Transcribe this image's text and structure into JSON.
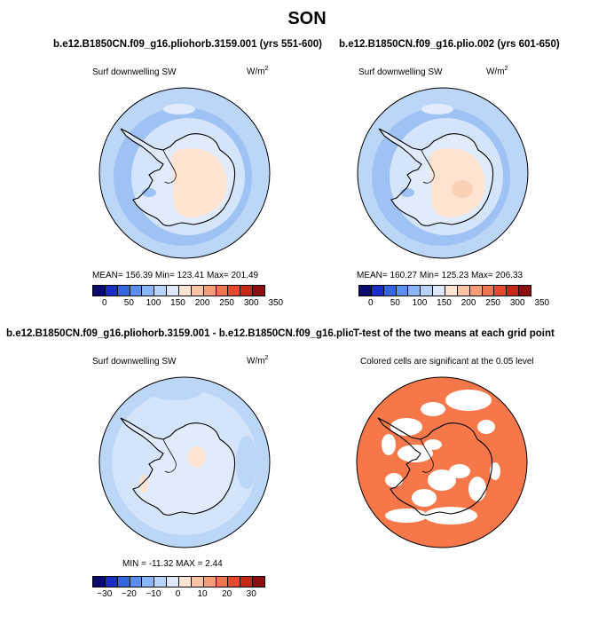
{
  "title": "SON",
  "panels": {
    "p1": {
      "title": "b.e12.B1850CN.f09_g16.pliohorb.3159.001 (yrs 551-600)",
      "variable": "Surf downwelling SW",
      "units": "W/m",
      "units_sup": "2",
      "stats": "MEAN= 156.39    Min= 123.41    Max= 201.49"
    },
    "p2": {
      "title": "b.e12.B1850CN.f09_g16.plio.002 (yrs 601-650)",
      "variable": "Surf downwelling SW",
      "units": "W/m",
      "units_sup": "2",
      "stats": "MEAN= 160.27    Min= 125.23    Max= 206.33"
    },
    "p3": {
      "title": "b.e12.B1850CN.f09_g16.pliohorb.3159.001 - b.e12.B1850CN.f09_g16.plio.002",
      "variable": "Surf downwelling SW",
      "units": "W/m",
      "units_sup": "2",
      "stats": "MIN = -11.32  MAX =    2.44"
    },
    "p4": {
      "title": "T-test of the two means at each grid point",
      "variable": "Colored cells are significant at the 0.05 level"
    }
  },
  "colorbars": {
    "abs": {
      "colors": [
        "#0b0a6e",
        "#1b2ec4",
        "#3565df",
        "#5c8ef0",
        "#8ab5f7",
        "#b8d3f9",
        "#dde9fb",
        "#fde5d2",
        "#fbc4a5",
        "#f89c78",
        "#f3754f",
        "#e24c2c",
        "#c3291b",
        "#8b0f0f"
      ],
      "ticks": [
        "0",
        "50",
        "100",
        "150",
        "200",
        "250",
        "300",
        "350"
      ]
    },
    "diff": {
      "colors": [
        "#0b0a6e",
        "#1b2ec4",
        "#3565df",
        "#5c8ef0",
        "#8ab5f7",
        "#b8d3f9",
        "#dde9fb",
        "#fde5d2",
        "#fbc4a5",
        "#f89c78",
        "#f3754f",
        "#e24c2c",
        "#c3291b",
        "#8b0f0f"
      ],
      "ticks": [
        "−30",
        "−20",
        "−10",
        "0",
        "10",
        "20",
        "30"
      ]
    }
  },
  "map_colors": {
    "ocean_outer": "#bcd6f7",
    "ocean_band": "#9ec2f4",
    "ocean_inner": "#d4e5fb",
    "ocean_light": "#e0ecfc",
    "land_warm": "#fde3d0",
    "land_warmer": "#fbd1b6",
    "sig": "#f6784a",
    "nonsig": "#ffffff"
  }
}
